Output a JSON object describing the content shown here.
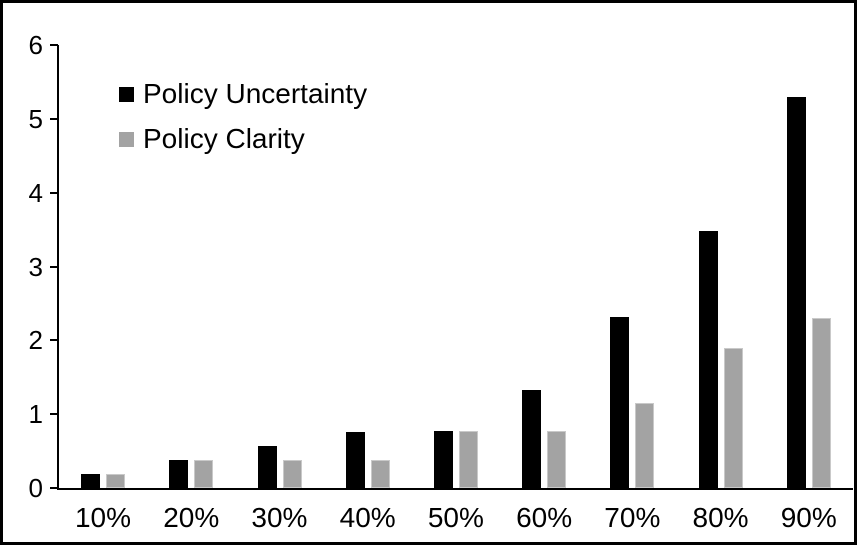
{
  "figure": {
    "background": "#ffffff",
    "border_color": "#000000",
    "axis_color": "#000000"
  },
  "chart_data": {
    "type": "bar",
    "title": "",
    "xlabel": "",
    "ylabel": "",
    "categories": [
      "10%",
      "20%",
      "30%",
      "40%",
      "50%",
      "60%",
      "70%",
      "80%",
      "90%"
    ],
    "series": [
      {
        "name": "Policy Uncertainty",
        "color": "#000000",
        "values": [
          0.19,
          0.38,
          0.57,
          0.76,
          0.77,
          1.33,
          2.31,
          3.48,
          5.3
        ]
      },
      {
        "name": "Policy Clarity",
        "color": "#a3a3a3",
        "values": [
          0.19,
          0.38,
          0.38,
          0.38,
          0.77,
          0.77,
          1.15,
          1.9,
          2.3
        ]
      }
    ],
    "ylim": [
      0,
      6
    ],
    "yticks": [
      0,
      1,
      2,
      3,
      4,
      5,
      6
    ],
    "grid": false,
    "legend_position": "upper-left-inside"
  }
}
